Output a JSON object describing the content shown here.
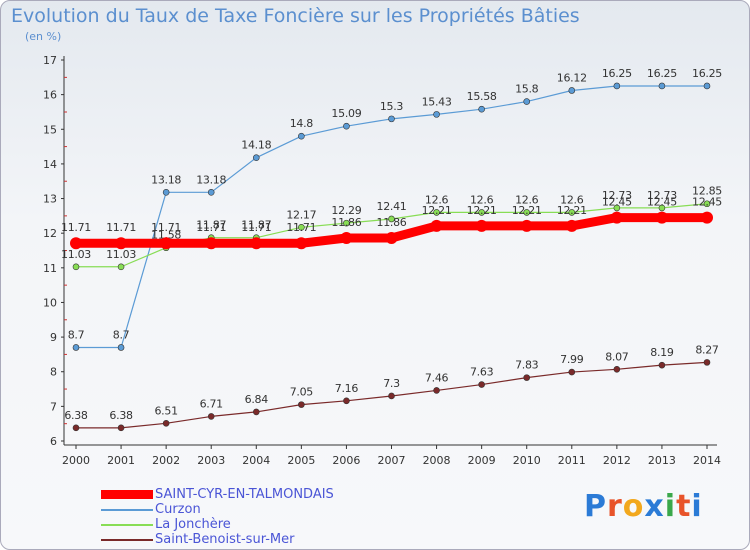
{
  "title": "Evolution du Taux de Taxe Foncière sur les Propriétés Bâties",
  "subtitle": "(en %)",
  "logo": "Proxiti",
  "chart_data": {
    "type": "line",
    "x": [
      "2000",
      "2001",
      "2002",
      "2003",
      "2004",
      "2005",
      "2006",
      "2007",
      "2008",
      "2009",
      "2010",
      "2011",
      "2012",
      "2013",
      "2014"
    ],
    "ylim": [
      6,
      17
    ],
    "yticks": [
      6,
      7,
      8,
      9,
      10,
      11,
      12,
      13,
      14,
      15,
      16,
      17
    ],
    "grid": false,
    "legend_placement": "bottom-left",
    "series": [
      {
        "name": "SAINT-CYR-EN-TALMONDAIS",
        "color": "#ff0000",
        "values": [
          11.71,
          11.71,
          11.71,
          11.71,
          11.71,
          11.71,
          11.86,
          11.86,
          12.21,
          12.21,
          12.21,
          12.21,
          12.45,
          12.45,
          12.45
        ],
        "labels": [
          "11.71",
          "11.71",
          "11.71",
          "11.71",
          "11.71",
          "11.71",
          "11.86",
          "11.86",
          "12.21",
          "12.21",
          "12.21",
          "12.21",
          "12.45",
          "12.45",
          "12.45"
        ]
      },
      {
        "name": "Curzon",
        "color": "#5b9bd5",
        "values": [
          8.7,
          8.7,
          13.18,
          13.18,
          14.18,
          14.8,
          15.09,
          15.3,
          15.43,
          15.58,
          15.8,
          16.12,
          16.25,
          16.25,
          16.25
        ],
        "labels": [
          "8.7",
          "8.7",
          "13.18",
          "13.18",
          "14.18",
          "14.8",
          "15.09",
          "15.3",
          "15.43",
          "15.58",
          "15.8",
          "16.12",
          "16.25",
          "16.25",
          "16.25"
        ]
      },
      {
        "name": "La Jonchère",
        "color": "#88dd55",
        "values": [
          11.03,
          11.03,
          11.58,
          11.87,
          11.87,
          12.17,
          12.29,
          12.41,
          12.6,
          12.6,
          12.6,
          12.6,
          12.73,
          12.73,
          12.85
        ],
        "labels": [
          "11.03",
          "11.03",
          "11.58",
          "11.87",
          "11.87",
          "12.17",
          "12.29",
          "12.41",
          "12.6",
          "12.6",
          "12.6",
          "12.6",
          "12.73",
          "12.73",
          "12.85"
        ]
      },
      {
        "name": "Saint-Benoist-sur-Mer",
        "color": "#7a2a2a",
        "values": [
          6.38,
          6.38,
          6.51,
          6.71,
          6.84,
          7.05,
          7.16,
          7.3,
          7.46,
          7.63,
          7.83,
          7.99,
          8.07,
          8.19,
          8.27
        ],
        "labels": [
          "6.38",
          "6.38",
          "6.51",
          "6.71",
          "6.84",
          "7.05",
          "7.16",
          "7.3",
          "7.46",
          "7.63",
          "7.83",
          "7.99",
          "8.07",
          "8.19",
          "8.27"
        ]
      }
    ]
  }
}
